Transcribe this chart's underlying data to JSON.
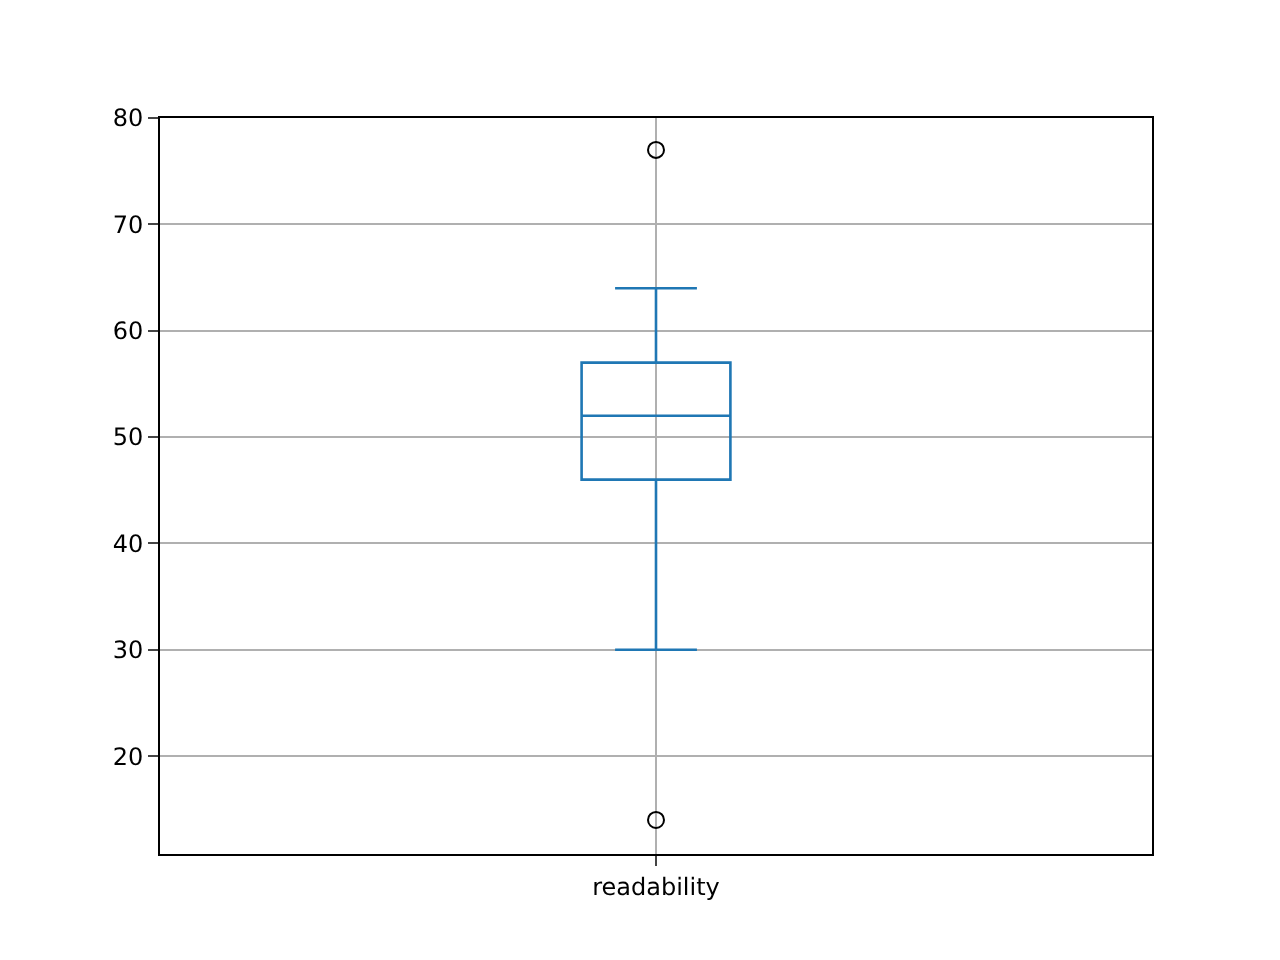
{
  "chart_data": {
    "type": "box",
    "categories": [
      "readability"
    ],
    "boxes": [
      {
        "low": 30,
        "q1": 46,
        "median": 52,
        "q3": 57,
        "high": 64,
        "outliers": [
          77,
          14
        ]
      }
    ],
    "color": "#1f77b4",
    "ylim": [
      10.8,
      80
    ],
    "yticks": [
      20,
      30,
      40,
      50,
      60,
      70,
      80
    ],
    "grid": true
  }
}
